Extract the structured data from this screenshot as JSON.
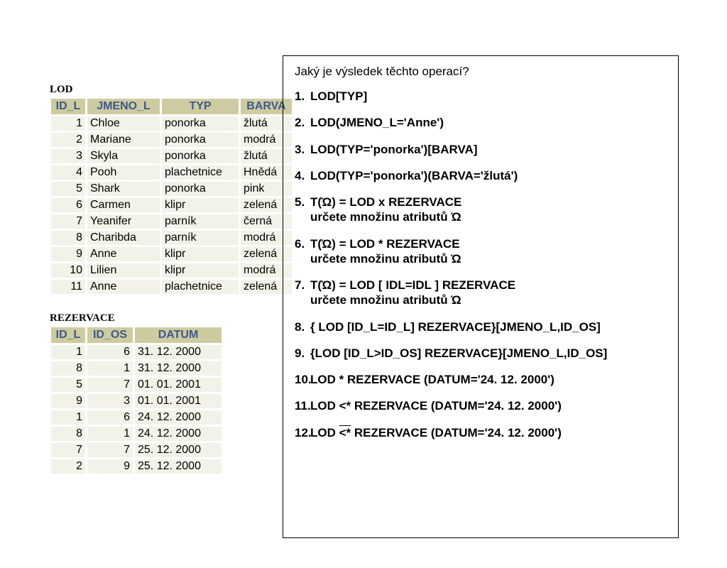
{
  "lod": {
    "title": "LOD",
    "columns": [
      "ID_L",
      "JMENO_L",
      "TYP",
      "BARVA"
    ],
    "rows": [
      [
        "1",
        "Chloe",
        "ponorka",
        "žlutá"
      ],
      [
        "2",
        "Mariane",
        "ponorka",
        "modrá"
      ],
      [
        "3",
        "Skyla",
        "ponorka",
        "žlutá"
      ],
      [
        "4",
        "Pooh",
        "plachetnice",
        "Hnědá"
      ],
      [
        "5",
        "Shark",
        "ponorka",
        "pink"
      ],
      [
        "6",
        "Carmen",
        "klipr",
        "zelená"
      ],
      [
        "7",
        "Yeanifer",
        "parník",
        "černá"
      ],
      [
        "8",
        "Charibda",
        "parník",
        "modrá"
      ],
      [
        "9",
        "Anne",
        "klipr",
        "zelená"
      ],
      [
        "10",
        "Lilien",
        "klipr",
        "modrá"
      ],
      [
        "11",
        "Anne",
        "plachetnice",
        "zelená"
      ]
    ],
    "col_align": [
      "num",
      "left",
      "left",
      "left"
    ],
    "col_widths": [
      "36px",
      "90px",
      "96px",
      "60px"
    ]
  },
  "rezervace": {
    "title": "REZERVACE",
    "columns": [
      "ID_L",
      "ID_OS",
      "DATUM"
    ],
    "rows": [
      [
        "1",
        "6",
        "31. 12. 2000"
      ],
      [
        "8",
        "1",
        "31. 12. 2000"
      ],
      [
        "5",
        "7",
        "01. 01. 2001"
      ],
      [
        "9",
        "3",
        "01. 01. 2001"
      ],
      [
        "1",
        "6",
        "24. 12. 2000"
      ],
      [
        "8",
        "1",
        "24. 12. 2000"
      ],
      [
        "7",
        "7",
        "25. 12. 2000"
      ],
      [
        "2",
        "9",
        "25. 12. 2000"
      ]
    ],
    "col_align": [
      "num",
      "num",
      "left"
    ],
    "col_widths": [
      "36px",
      "52px",
      "110px"
    ]
  },
  "questions": {
    "title": "Jaký je výsledek těchto operací?",
    "items": [
      {
        "main": "LOD[TYP]"
      },
      {
        "main": "LOD(JMENO_L='Anne')"
      },
      {
        "main": "LOD(TYP='ponorka')[BARVA]"
      },
      {
        "main": "LOD(TYP='ponorka')(BARVA='žlutá')"
      },
      {
        "main": "T(Ώ) = LOD x REZERVACE",
        "sub": "určete množinu atributů Ώ"
      },
      {
        "main": "T(Ώ) = LOD * REZERVACE",
        "sub": "určete množinu atributů Ώ"
      },
      {
        "main": "T(Ώ) = LOD [ IDL=IDL ] REZERVACE",
        "sub": "určete množinu atributů Ώ"
      },
      {
        "main": "{ LOD [ID_L=ID_L] REZERVACE}[JMENO_L,ID_OS]"
      },
      {
        "main": "{LOD [ID_L>ID_OS] REZERVACE}[JMENO_L,ID_OS]"
      },
      {
        "main": "LOD * REZERVACE (DATUM='24. 12. 2000')"
      },
      {
        "main": "LOD <* REZERVACE (DATUM='24. 12. 2000')"
      },
      {
        "main": "LOD ",
        "overline": "<*",
        "tail": " REZERVACE (DATUM='24. 12. 2000')"
      }
    ]
  },
  "style": {
    "header_bg": "#cfcba1",
    "header_fg": "#3a5a8c",
    "cell_bg": "#f3f2e8",
    "border_color": "#ffffff",
    "panel_border": "#000000",
    "font_body": "Arial, Helvetica, sans-serif",
    "font_title": "Times New Roman, serif"
  }
}
